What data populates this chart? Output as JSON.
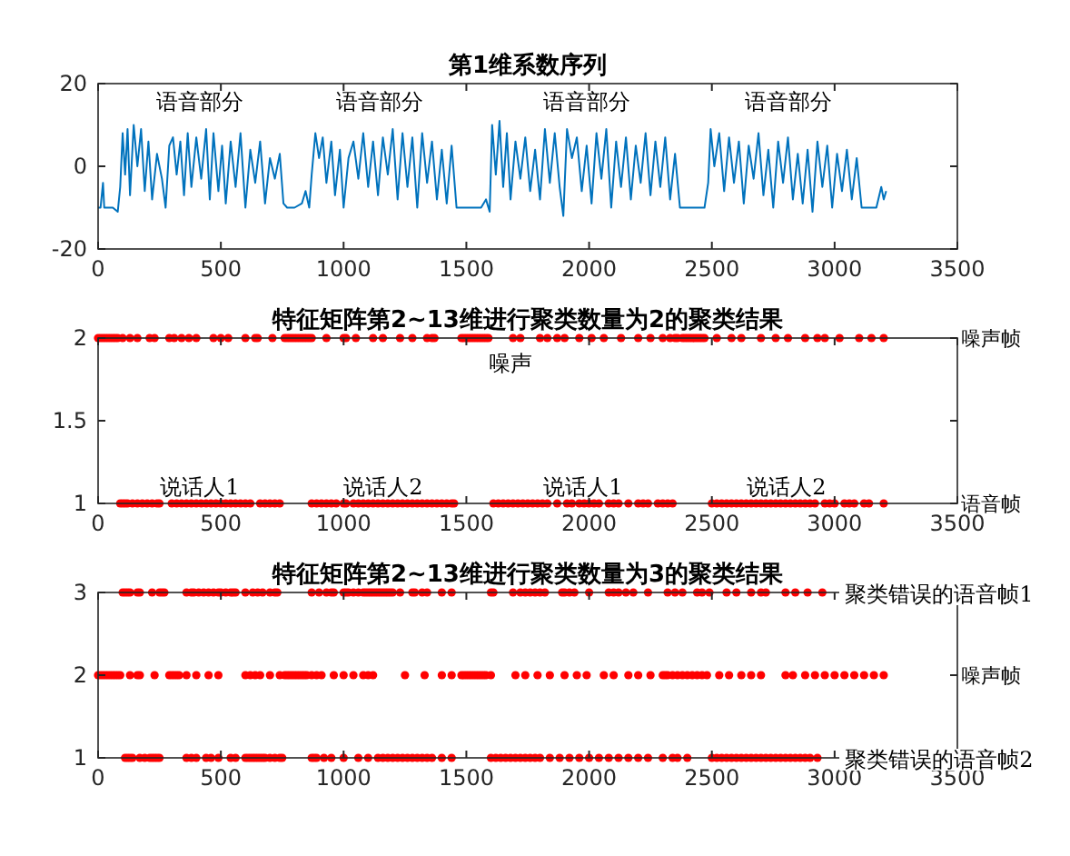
{
  "chart_data": [
    {
      "type": "line",
      "title": "第1维系数序列",
      "color": "#0072bd",
      "xlim": [
        0,
        3500
      ],
      "ylim": [
        -20,
        20
      ],
      "xticks": [
        0,
        500,
        1000,
        1500,
        2000,
        2500,
        3000,
        3500
      ],
      "yticks": [
        -20,
        0,
        20
      ],
      "x": [
        0,
        10,
        20,
        25,
        60,
        80,
        90,
        100,
        110,
        120,
        130,
        145,
        160,
        175,
        190,
        205,
        220,
        240,
        260,
        275,
        290,
        305,
        320,
        335,
        350,
        365,
        380,
        400,
        420,
        440,
        455,
        470,
        490,
        505,
        520,
        540,
        560,
        580,
        600,
        620,
        640,
        660,
        680,
        700,
        720,
        740,
        755,
        770,
        800,
        830,
        845,
        860,
        870,
        885,
        900,
        915,
        930,
        950,
        965,
        985,
        1000,
        1020,
        1040,
        1060,
        1080,
        1100,
        1120,
        1140,
        1160,
        1180,
        1200,
        1220,
        1240,
        1260,
        1280,
        1300,
        1320,
        1340,
        1360,
        1380,
        1400,
        1420,
        1440,
        1460,
        1480,
        1520,
        1560,
        1580,
        1595,
        1605,
        1620,
        1635,
        1650,
        1665,
        1680,
        1700,
        1720,
        1740,
        1760,
        1780,
        1800,
        1820,
        1840,
        1860,
        1880,
        1895,
        1910,
        1930,
        1950,
        1970,
        1990,
        2010,
        2030,
        2050,
        2070,
        2090,
        2110,
        2130,
        2150,
        2170,
        2190,
        2210,
        2230,
        2250,
        2270,
        2290,
        2310,
        2330,
        2350,
        2370,
        2400,
        2440,
        2470,
        2485,
        2495,
        2510,
        2530,
        2550,
        2570,
        2590,
        2610,
        2630,
        2650,
        2670,
        2690,
        2710,
        2730,
        2750,
        2770,
        2790,
        2810,
        2830,
        2850,
        2870,
        2890,
        2910,
        2930,
        2950,
        2970,
        2990,
        3010,
        3030,
        3050,
        3070,
        3090,
        3110,
        3130,
        3150,
        3170,
        3190,
        3200,
        3210
      ],
      "values": [
        -10,
        -10,
        -4,
        -10,
        -10,
        -11,
        -5,
        8,
        -2,
        9,
        -7,
        10,
        0,
        9,
        -6,
        6,
        -8,
        3,
        -3,
        -10,
        5,
        7,
        -2,
        6,
        -7,
        8,
        -5,
        7,
        -3,
        9,
        -8,
        8,
        -6,
        5,
        -9,
        6,
        -5,
        8,
        -10,
        4,
        -4,
        6,
        -9,
        2,
        -3,
        3,
        -9,
        -10,
        -10,
        -9,
        -6,
        -10,
        -2,
        8,
        2,
        7,
        -4,
        6,
        -7,
        4,
        -10,
        2,
        6,
        -3,
        8,
        -5,
        6,
        -7,
        7,
        -2,
        9,
        -8,
        8,
        -5,
        7,
        -10,
        8,
        -4,
        6,
        -8,
        4,
        -9,
        5,
        -10,
        -10,
        -10,
        -10,
        -8,
        -11,
        10,
        -2,
        11,
        -5,
        8,
        -8,
        6,
        -3,
        7,
        -6,
        4,
        -8,
        9,
        -4,
        8,
        -5,
        -12,
        9,
        2,
        7,
        -6,
        5,
        -9,
        8,
        -3,
        9,
        -10,
        6,
        -5,
        7,
        -8,
        5,
        -4,
        8,
        -7,
        6,
        -5,
        7,
        -8,
        3,
        -10,
        -10,
        -10,
        -10,
        -4,
        9,
        0,
        8,
        -6,
        7,
        -4,
        6,
        -9,
        5,
        -3,
        8,
        -7,
        4,
        -10,
        6,
        -4,
        7,
        -8,
        3,
        -9,
        4,
        -11,
        6,
        -5,
        5,
        -10,
        3,
        -6,
        4,
        -8,
        2,
        -10,
        -10,
        -10,
        -10,
        -5,
        -8,
        -6
      ],
      "annotations": [
        "语音部分",
        "语音部分",
        "语音部分",
        "语音部分"
      ]
    },
    {
      "type": "scatter",
      "title": "特征矩阵第2~13维进行聚类数量为2的聚类结果",
      "marker": "circle",
      "xlim": [
        0,
        3500
      ],
      "ylim": [
        1,
        2
      ],
      "xticks": [
        0,
        500,
        1000,
        1500,
        2000,
        2500,
        3000,
        3500
      ],
      "yticks": [
        1,
        1.5,
        2
      ],
      "series": [
        {
          "color": "#ff0000",
          "x": [
            0,
            10,
            20,
            30,
            40,
            50,
            60,
            70,
            80,
            100,
            130,
            160,
            210,
            230,
            290,
            310,
            340,
            370,
            400,
            470,
            500,
            530,
            600,
            640,
            650,
            710,
            760,
            770,
            780,
            790,
            800,
            810,
            820,
            830,
            840,
            850,
            860,
            870,
            930,
            1000,
            1010,
            1050,
            1120,
            1160,
            1230,
            1280,
            1340,
            1360,
            1370,
            1480,
            1490,
            1500,
            1510,
            1520,
            1530,
            1540,
            1550,
            1560,
            1570,
            1580,
            1590,
            1690,
            1720,
            1800,
            1830,
            1870,
            1900,
            1960,
            2010,
            2060,
            2130,
            2200,
            2250,
            2300,
            2330,
            2350,
            2360,
            2380,
            2390,
            2400,
            2410,
            2420,
            2430,
            2440,
            2450,
            2460,
            2470,
            2520,
            2580,
            2620,
            2700,
            2760,
            2810,
            2880,
            2930,
            2960,
            3020,
            3100,
            3150,
            3200
          ],
          "values": [
            2,
            2,
            2,
            2,
            2,
            2,
            2,
            2,
            2,
            2,
            2,
            2,
            2,
            2,
            2,
            2,
            2,
            2,
            2,
            2,
            2,
            2,
            2,
            2,
            2,
            2,
            2,
            2,
            2,
            2,
            2,
            2,
            2,
            2,
            2,
            2,
            2,
            2,
            2,
            2,
            2,
            2,
            2,
            2,
            2,
            2,
            2,
            2,
            2,
            2,
            2,
            2,
            2,
            2,
            2,
            2,
            2,
            2,
            2,
            2,
            2,
            2,
            2,
            2,
            2,
            2,
            2,
            2,
            2,
            2,
            2,
            2,
            2,
            2,
            2,
            2,
            2,
            2,
            2,
            2,
            2,
            2,
            2,
            2,
            2,
            2,
            2,
            2,
            2,
            2,
            2,
            2,
            2,
            2,
            2,
            2,
            2,
            2,
            2,
            2
          ]
        },
        {
          "color": "#ff0000",
          "x": [
            90,
            100,
            110,
            120,
            140,
            160,
            180,
            200,
            220,
            240,
            250,
            300,
            320,
            340,
            360,
            380,
            400,
            420,
            440,
            460,
            480,
            500,
            520,
            540,
            560,
            580,
            600,
            620,
            660,
            680,
            700,
            720,
            740,
            870,
            890,
            910,
            930,
            950,
            970,
            1000,
            1010,
            1040,
            1060,
            1080,
            1100,
            1120,
            1140,
            1160,
            1180,
            1200,
            1220,
            1240,
            1260,
            1280,
            1300,
            1320,
            1340,
            1360,
            1380,
            1400,
            1420,
            1440,
            1450,
            1610,
            1630,
            1650,
            1670,
            1690,
            1710,
            1730,
            1750,
            1770,
            1790,
            1810,
            1830,
            1870,
            1910,
            1930,
            1960,
            1980,
            2000,
            2020,
            2040,
            2080,
            2100,
            2120,
            2160,
            2200,
            2220,
            2240,
            2280,
            2300,
            2320,
            2340,
            2500,
            2520,
            2540,
            2560,
            2580,
            2600,
            2620,
            2640,
            2660,
            2680,
            2700,
            2720,
            2740,
            2760,
            2780,
            2800,
            2820,
            2840,
            2860,
            2880,
            2900,
            2920,
            2960,
            2980,
            3000,
            3040,
            3060,
            3080,
            3120,
            3140,
            3200
          ],
          "values": [
            1,
            1,
            1,
            1,
            1,
            1,
            1,
            1,
            1,
            1,
            1,
            1,
            1,
            1,
            1,
            1,
            1,
            1,
            1,
            1,
            1,
            1,
            1,
            1,
            1,
            1,
            1,
            1,
            1,
            1,
            1,
            1,
            1,
            1,
            1,
            1,
            1,
            1,
            1,
            1,
            1,
            1,
            1,
            1,
            1,
            1,
            1,
            1,
            1,
            1,
            1,
            1,
            1,
            1,
            1,
            1,
            1,
            1,
            1,
            1,
            1,
            1,
            1,
            1,
            1,
            1,
            1,
            1,
            1,
            1,
            1,
            1,
            1,
            1,
            1,
            1,
            1,
            1,
            1,
            1,
            1,
            1,
            1,
            1,
            1,
            1,
            1,
            1,
            1,
            1,
            1,
            1,
            1,
            1,
            1,
            1,
            1,
            1,
            1,
            1,
            1,
            1,
            1,
            1,
            1,
            1,
            1,
            1,
            1,
            1,
            1,
            1,
            1,
            1,
            1,
            1,
            1,
            1,
            1,
            1,
            1,
            1,
            1,
            1,
            1
          ]
        }
      ],
      "annotations": [
        {
          "text": "噪声帧",
          "y": 2
        },
        {
          "text": "语音帧",
          "y": 1
        },
        "噪声",
        "说话人1",
        "说话人2",
        "说话人1",
        "说话人2"
      ]
    },
    {
      "type": "scatter",
      "title": "特征矩阵第2~13维进行聚类数量为3的聚类结果",
      "marker": "circle",
      "xlim": [
        0,
        3500
      ],
      "ylim": [
        1,
        3
      ],
      "xticks": [
        0,
        500,
        1000,
        1500,
        2000,
        2500,
        3000,
        3500
      ],
      "yticks": [
        1,
        2,
        3
      ],
      "series": [
        {
          "color": "#ff0000",
          "x": [
            100,
            110,
            120,
            130,
            160,
            170,
            220,
            250,
            260,
            270,
            360,
            380,
            390,
            410,
            430,
            450,
            470,
            490,
            500,
            520,
            540,
            550,
            560,
            600,
            630,
            650,
            670,
            700,
            720,
            730,
            870,
            900,
            930,
            950,
            960,
            1000,
            1010,
            1020,
            1040,
            1060,
            1080,
            1090,
            1100,
            1110,
            1120,
            1130,
            1140,
            1150,
            1160,
            1170,
            1180,
            1190,
            1200,
            1230,
            1280,
            1290,
            1320,
            1340,
            1400,
            1440,
            1600,
            1610,
            1690,
            1720,
            1740,
            1760,
            1780,
            1800,
            1820,
            1890,
            1900,
            1920,
            1940,
            2000,
            2080,
            2100,
            2120,
            2150,
            2180,
            2240,
            2320,
            2350,
            2380,
            2440,
            2460,
            2490,
            2560,
            2600,
            2660,
            2700,
            2720,
            2800,
            2840,
            2890,
            2950
          ],
          "values": [
            3,
            3,
            3,
            3,
            3,
            3,
            3,
            3,
            3,
            3,
            3,
            3,
            3,
            3,
            3,
            3,
            3,
            3,
            3,
            3,
            3,
            3,
            3,
            3,
            3,
            3,
            3,
            3,
            3,
            3,
            3,
            3,
            3,
            3,
            3,
            3,
            3,
            3,
            3,
            3,
            3,
            3,
            3,
            3,
            3,
            3,
            3,
            3,
            3,
            3,
            3,
            3,
            3,
            3,
            3,
            3,
            3,
            3,
            3,
            3,
            3,
            3,
            3,
            3,
            3,
            3,
            3,
            3,
            3,
            3,
            3,
            3,
            3,
            3,
            3,
            3,
            3,
            3,
            3,
            3,
            3,
            3,
            3,
            3,
            3,
            3,
            3,
            3,
            3,
            3,
            3,
            3,
            3,
            3,
            3
          ]
        },
        {
          "color": "#ff0000",
          "x": [
            0,
            10,
            20,
            30,
            40,
            50,
            60,
            70,
            80,
            90,
            130,
            160,
            170,
            230,
            290,
            300,
            310,
            320,
            330,
            360,
            400,
            450,
            490,
            600,
            620,
            640,
            660,
            700,
            740,
            760,
            770,
            780,
            790,
            800,
            810,
            820,
            830,
            840,
            850,
            870,
            890,
            910,
            960,
            1000,
            1040,
            1080,
            1100,
            1120,
            1250,
            1330,
            1400,
            1440,
            1480,
            1490,
            1500,
            1510,
            1520,
            1530,
            1540,
            1550,
            1560,
            1570,
            1580,
            1600,
            1700,
            1740,
            1790,
            1840,
            1900,
            1950,
            1990,
            2060,
            2100,
            2160,
            2200,
            2250,
            2300,
            2310,
            2320,
            2340,
            2360,
            2380,
            2400,
            2420,
            2440,
            2460,
            2480,
            2530,
            2570,
            2620,
            2660,
            2700,
            2800,
            2830,
            2880,
            2920,
            2960,
            3000,
            3040,
            3080,
            3120,
            3160,
            3200
          ],
          "values": [
            2,
            2,
            2,
            2,
            2,
            2,
            2,
            2,
            2,
            2,
            2,
            2,
            2,
            2,
            2,
            2,
            2,
            2,
            2,
            2,
            2,
            2,
            2,
            2,
            2,
            2,
            2,
            2,
            2,
            2,
            2,
            2,
            2,
            2,
            2,
            2,
            2,
            2,
            2,
            2,
            2,
            2,
            2,
            2,
            2,
            2,
            2,
            2,
            2,
            2,
            2,
            2,
            2,
            2,
            2,
            2,
            2,
            2,
            2,
            2,
            2,
            2,
            2,
            2,
            2,
            2,
            2,
            2,
            2,
            2,
            2,
            2,
            2,
            2,
            2,
            2,
            2,
            2,
            2,
            2,
            2,
            2,
            2,
            2,
            2,
            2,
            2,
            2,
            2,
            2,
            2,
            2,
            2,
            2,
            2,
            2,
            2,
            2,
            2,
            2,
            2,
            2,
            2
          ]
        },
        {
          "color": "#ff0000",
          "x": [
            110,
            120,
            130,
            140,
            170,
            190,
            210,
            220,
            230,
            240,
            250,
            360,
            380,
            400,
            440,
            460,
            490,
            540,
            560,
            600,
            610,
            620,
            630,
            640,
            650,
            660,
            670,
            680,
            700,
            720,
            740,
            750,
            870,
            880,
            890,
            920,
            950,
            1000,
            1060,
            1100,
            1140,
            1160,
            1180,
            1200,
            1220,
            1240,
            1260,
            1280,
            1300,
            1320,
            1340,
            1360,
            1400,
            1440,
            1600,
            1620,
            1640,
            1660,
            1680,
            1700,
            1720,
            1740,
            1760,
            1780,
            1800,
            1840,
            1880,
            1920,
            1960,
            2000,
            2040,
            2080,
            2120,
            2160,
            2200,
            2240,
            2300,
            2340,
            2360,
            2400,
            2500,
            2520,
            2540,
            2560,
            2580,
            2600,
            2620,
            2640,
            2660,
            2680,
            2700,
            2720,
            2740,
            2760,
            2780,
            2800,
            2820,
            2840,
            2860,
            2880,
            2900,
            2930
          ],
          "values": [
            1,
            1,
            1,
            1,
            1,
            1,
            1,
            1,
            1,
            1,
            1,
            1,
            1,
            1,
            1,
            1,
            1,
            1,
            1,
            1,
            1,
            1,
            1,
            1,
            1,
            1,
            1,
            1,
            1,
            1,
            1,
            1,
            1,
            1,
            1,
            1,
            1,
            1,
            1,
            1,
            1,
            1,
            1,
            1,
            1,
            1,
            1,
            1,
            1,
            1,
            1,
            1,
            1,
            1,
            1,
            1,
            1,
            1,
            1,
            1,
            1,
            1,
            1,
            1,
            1,
            1,
            1,
            1,
            1,
            1,
            1,
            1,
            1,
            1,
            1,
            1,
            1,
            1,
            1,
            1,
            1,
            1,
            1,
            1,
            1,
            1,
            1,
            1,
            1,
            1,
            1,
            1,
            1,
            1,
            1,
            1,
            1,
            1,
            1,
            1,
            1,
            1
          ]
        }
      ],
      "annotations": [
        "聚类错误的语音帧1",
        {
          "text": "噪声帧",
          "y": 2
        },
        "聚类错误的语音帧2"
      ]
    }
  ]
}
